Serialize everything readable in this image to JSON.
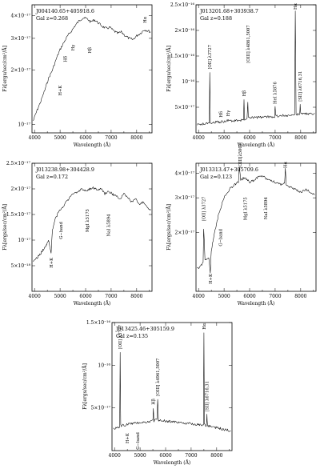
{
  "chart_data": [
    {
      "type": "line",
      "object": "J004140.65+405918.6",
      "redshift": "Gal z=0.268",
      "xlabel": "Wavelength (Å)",
      "ylabel": "Fλ[ergs/sec/cm²/Å]",
      "xlim": [
        3900,
        8600
      ],
      "ylim": [
        9e-18,
        4.6e-17
      ],
      "ylog": true,
      "xticks": [
        4000,
        5000,
        6000,
        7000,
        8000
      ],
      "yticks": [
        {
          "value": 1e-17,
          "label": "10⁻¹⁷"
        },
        {
          "value": 2e-17,
          "label": "2×10⁻¹⁷"
        },
        {
          "value": 3e-17,
          "label": "3×10⁻¹⁷"
        },
        {
          "value": 4e-17,
          "label": "4×10⁻¹⁷"
        }
      ],
      "spectrum": {
        "x": [
          3950,
          4100,
          4250,
          4400,
          4550,
          4700,
          4850,
          5000,
          5150,
          5300,
          5450,
          5600,
          5750,
          5900,
          6050,
          6200,
          6350,
          6500,
          6650,
          6800,
          6950,
          7100,
          7250,
          7400,
          7550,
          7700,
          7850,
          8000,
          8150,
          8300,
          8450,
          8550
        ],
        "y": [
          1.05e-17,
          1.2e-17,
          1.35e-17,
          1.55e-17,
          1.8e-17,
          2e-17,
          2.3e-17,
          2.6e-17,
          2.85e-17,
          3.1e-17,
          3.3e-17,
          3.55e-17,
          3.75e-17,
          3.9e-17,
          3.85e-17,
          3.7e-17,
          3.8e-17,
          3.65e-17,
          3.5e-17,
          3.4e-17,
          3.45e-17,
          3.3e-17,
          3.2e-17,
          3.25e-17,
          3.1e-17,
          3e-17,
          2.95e-17,
          3.1e-17,
          3.2e-17,
          3.35e-17,
          3.3e-17,
          3.25e-17
        ]
      },
      "lines": [
        {
          "label": "H+K",
          "x": 5000,
          "y": 1.75e-17,
          "below": true
        },
        {
          "label": "Hδ",
          "x": 5200,
          "y": 2.55e-17,
          "below": true
        },
        {
          "label": "Hγ",
          "x": 5500,
          "y": 2.95e-17,
          "below": true
        },
        {
          "label": "Hβ",
          "x": 6160,
          "y": 2.85e-17,
          "below": true
        },
        {
          "label": "Hα",
          "x": 8320,
          "y": 3.5e-17,
          "below": false
        }
      ]
    },
    {
      "type": "line",
      "object": "J013201.68+303938.7",
      "redshift": "Gal z=0.188",
      "xlabel": "Wavelength (Å)",
      "ylabel": "Fλ[ergs/sec/cm²/Å]",
      "xlim": [
        3900,
        8600
      ],
      "ylim": [
        0,
        2.5e-16
      ],
      "ylog": false,
      "xticks": [
        4000,
        5000,
        6000,
        7000,
        8000
      ],
      "yticks": [
        {
          "value": 5e-17,
          "label": "5×10⁻¹⁷"
        },
        {
          "value": 1e-16,
          "label": "10⁻¹⁶"
        },
        {
          "value": 1.5e-16,
          "label": "1.5×10⁻¹⁶"
        },
        {
          "value": 2e-16,
          "label": "2×10⁻¹⁶"
        },
        {
          "value": 2.5e-16,
          "label": "2.5×10⁻¹⁶"
        }
      ],
      "spectrum": {
        "x": [
          3950,
          4200,
          4420,
          4440,
          4460,
          4700,
          5000,
          5150,
          5300,
          5600,
          5760,
          5780,
          5800,
          5900,
          5930,
          5950,
          6200,
          6600,
          6980,
          7000,
          7020,
          7400,
          7760,
          7790,
          7820,
          7960,
          7980,
          8000,
          8300,
          8550
        ],
        "y": [
          1.6e-17,
          1.75e-17,
          1.9e-17,
          1.18e-16,
          2e-17,
          2.1e-17,
          2.2e-17,
          2.5e-17,
          2.3e-17,
          2.4e-17,
          2.5e-17,
          6.5e-17,
          2.7e-17,
          2.8e-17,
          6e-17,
          2.9e-17,
          3e-17,
          3.1e-17,
          3.2e-17,
          5e-17,
          3.3e-17,
          3.4e-17,
          3.5e-17,
          2.38e-16,
          3.6e-17,
          3.6e-17,
          5.5e-17,
          3.7e-17,
          3.7e-17,
          3.8e-17
        ]
      },
      "lines": [
        {
          "label": "[OII] λ3727",
          "x": 4430,
          "y": 1.18e-16,
          "below": false
        },
        {
          "label": "Hδ",
          "x": 4870,
          "y": 2.4e-17,
          "below": false
        },
        {
          "label": "Hγ",
          "x": 5160,
          "y": 2.6e-17,
          "below": false
        },
        {
          "label": "Hβ",
          "x": 5780,
          "y": 6.5e-17,
          "below": false
        },
        {
          "label": "[OIII] λ4861,5007",
          "x": 5940,
          "y": 1.3e-16,
          "below": false
        },
        {
          "label": "HeI λ5876",
          "x": 6980,
          "y": 5e-17,
          "below": false
        },
        {
          "label": "Hα",
          "x": 7790,
          "y": 2.38e-16,
          "below": false
        },
        {
          "label": "[SII] λ6716,31",
          "x": 7980,
          "y": 5.5e-17,
          "below": false
        }
      ]
    },
    {
      "type": "line",
      "object": "J013238.98+304428.9",
      "redshift": "Gal z=0.172",
      "xlabel": "Wavelength (Å)",
      "ylabel": "Fλ[ergs/sec/cm²/Å]",
      "xlim": [
        3900,
        8600
      ],
      "ylim": [
        0,
        2.5e-17
      ],
      "ylog": false,
      "xticks": [
        4000,
        5000,
        6000,
        7000,
        8000
      ],
      "yticks": [
        {
          "value": 5e-18,
          "label": "5×10⁻¹⁸"
        },
        {
          "value": 1e-17,
          "label": "10⁻¹⁷"
        },
        {
          "value": 1.5e-17,
          "label": "1.5×10⁻¹⁷"
        },
        {
          "value": 2e-17,
          "label": "2×10⁻¹⁷"
        },
        {
          "value": 2.5e-17,
          "label": "2.5×10⁻¹⁷"
        }
      ],
      "spectrum": {
        "x": [
          3950,
          4100,
          4250,
          4400,
          4550,
          4650,
          4700,
          4800,
          4950,
          5100,
          5250,
          5400,
          5550,
          5700,
          5850,
          6000,
          6150,
          6300,
          6450,
          6600,
          6750,
          6900,
          7050,
          7200,
          7350,
          7500,
          7650,
          7800,
          7950,
          8100,
          8250,
          8400,
          8550
        ],
        "y": [
          6e-18,
          6.5e-18,
          7.5e-18,
          8.5e-18,
          1e-17,
          7.5e-18,
          1.2e-17,
          1.4e-17,
          1.55e-17,
          1.65e-17,
          1.75e-17,
          1.85e-17,
          1.9e-17,
          1.95e-17,
          2e-17,
          1.95e-17,
          2e-17,
          2.02e-17,
          1.98e-17,
          2e-17,
          1.9e-17,
          1.95e-17,
          1.9e-17,
          1.85e-17,
          1.8e-17,
          1.9e-17,
          1.85e-17,
          1.75e-17,
          1.8e-17,
          1.7e-17,
          1.75e-17,
          1.65e-17,
          1.6e-17
        ]
      },
      "lines": [
        {
          "label": "H+K",
          "x": 4650,
          "y": 7.5e-18,
          "below": true
        },
        {
          "label": "G−band",
          "x": 5030,
          "y": 1.45e-17,
          "below": true
        },
        {
          "label": "MgI λ5175",
          "x": 6060,
          "y": 1.7e-17,
          "below": true
        },
        {
          "label": "NaI λ5894",
          "x": 6900,
          "y": 1.6e-17,
          "below": true
        }
      ]
    },
    {
      "type": "line",
      "object": "J013313.47+305709.6",
      "redshift": "Gal z=0.123",
      "xlabel": "Wavelength (Å)",
      "ylabel": "Fλ[ergs/sec/cm²/Å]",
      "xlim": [
        3900,
        8600
      ],
      "ylim": [
        1e-17,
        4.5e-17
      ],
      "ylog": true,
      "xticks": [
        4000,
        5000,
        6000,
        7000,
        8000
      ],
      "yticks": [
        {
          "value": 2e-17,
          "label": "2×10⁻¹⁷"
        },
        {
          "value": 3e-17,
          "label": "3×10⁻¹⁷"
        },
        {
          "value": 4e-17,
          "label": "4×10⁻¹⁷"
        }
      ],
      "spectrum": {
        "x": [
          3950,
          4100,
          4180,
          4200,
          4250,
          4400,
          4460,
          4500,
          4600,
          4800,
          5000,
          5200,
          5400,
          5560,
          5600,
          5650,
          5800,
          6000,
          6200,
          6400,
          6600,
          6800,
          7000,
          7200,
          7370,
          7400,
          7430,
          7600,
          7800,
          8000,
          8200,
          8400,
          8550
        ],
        "y": [
          1.3e-17,
          1.35e-17,
          1.4e-17,
          2.1e-17,
          1.45e-17,
          1.5e-17,
          1.25e-17,
          1.6e-17,
          1.9e-17,
          2.5e-17,
          3e-17,
          3.3e-17,
          3.5e-17,
          3.6e-17,
          4.3e-17,
          3.7e-17,
          3.8e-17,
          3.6e-17,
          3.7e-17,
          3.9e-17,
          3.8e-17,
          3.7e-17,
          3.6e-17,
          3.5e-17,
          3.6e-17,
          4.2e-17,
          3.5e-17,
          3.4e-17,
          3.3e-17,
          3.2e-17,
          3.3e-17,
          3.2e-17,
          3.1e-17
        ]
      },
      "lines": [
        {
          "label": "[OII] λ3727",
          "x": 4190,
          "y": 2.2e-17,
          "below": false
        },
        {
          "label": "H+K",
          "x": 4460,
          "y": 1.3e-17,
          "below": true
        },
        {
          "label": "G−band",
          "x": 4850,
          "y": 2.2e-17,
          "below": true
        },
        {
          "label": "MgI λ5175",
          "x": 5820,
          "y": 3.2e-17,
          "below": true
        },
        {
          "label": "[OIII]λ5007",
          "x": 5620,
          "y": 4.4e-17,
          "below": false
        },
        {
          "label": "NaI λ5894",
          "x": 6620,
          "y": 3.2e-17,
          "below": true
        },
        {
          "label": "Hα",
          "x": 7390,
          "y": 4.3e-17,
          "below": false
        }
      ]
    },
    {
      "type": "line",
      "object": "J013425.46+305159.9",
      "redshift": "Gal z=0.135",
      "xlabel": "Wavelength (Å)",
      "ylabel": "Fλ[ergs/sec/cm²/Å]",
      "xlim": [
        3900,
        8600
      ],
      "ylim": [
        0,
        1.5e-16
      ],
      "ylog": false,
      "xticks": [
        4000,
        5000,
        6000,
        7000,
        8000
      ],
      "yticks": [
        {
          "value": 5e-17,
          "label": "5×10⁻¹⁷"
        },
        {
          "value": 1e-16,
          "label": "10⁻¹⁶"
        },
        {
          "value": 1.5e-16,
          "label": "1.5×10⁻¹⁶"
        }
      ],
      "spectrum": {
        "x": [
          3950,
          4100,
          4200,
          4220,
          4240,
          4400,
          4600,
          4800,
          5000,
          5200,
          5400,
          5500,
          5520,
          5540,
          5600,
          5660,
          5690,
          5720,
          5900,
          6200,
          6500,
          6800,
          7100,
          7400,
          7480,
          7500,
          7520,
          7600,
          7620,
          7640,
          7800,
          8100,
          8400,
          8550
        ],
        "y": [
          2.6e-17,
          2.7e-17,
          2.8e-17,
          1.15e-16,
          2.9e-17,
          3e-17,
          3.1e-17,
          3.2e-17,
          3.3e-17,
          3.3e-17,
          3.4e-17,
          3.5e-17,
          5e-17,
          3.5e-17,
          3.6e-17,
          3.6e-17,
          6e-17,
          3.5e-17,
          3.5e-17,
          3.4e-17,
          3.3e-17,
          3.2e-17,
          3.1e-17,
          3e-17,
          3e-17,
          1.38e-16,
          3e-17,
          2.9e-17,
          4.2e-17,
          2.9e-17,
          2.8e-17,
          2.6e-17,
          2.4e-17,
          2.3e-17
        ]
      },
      "lines": [
        {
          "label": "[OII] λ3727",
          "x": 4220,
          "y": 1.15e-16,
          "below": false
        },
        {
          "label": "H+K",
          "x": 4500,
          "y": 2.6e-17,
          "below": true
        },
        {
          "label": "G−band",
          "x": 4900,
          "y": 2.7e-17,
          "below": true
        },
        {
          "label": "Hβ",
          "x": 5520,
          "y": 5e-17,
          "below": false
        },
        {
          "label": "[OIII] λ4961,5007",
          "x": 5690,
          "y": 6e-17,
          "below": false
        },
        {
          "label": "Hα",
          "x": 7500,
          "y": 1.38e-16,
          "below": false
        },
        {
          "label": "[SII] λ6716,31",
          "x": 7620,
          "y": 4.2e-17,
          "below": false
        }
      ]
    }
  ]
}
